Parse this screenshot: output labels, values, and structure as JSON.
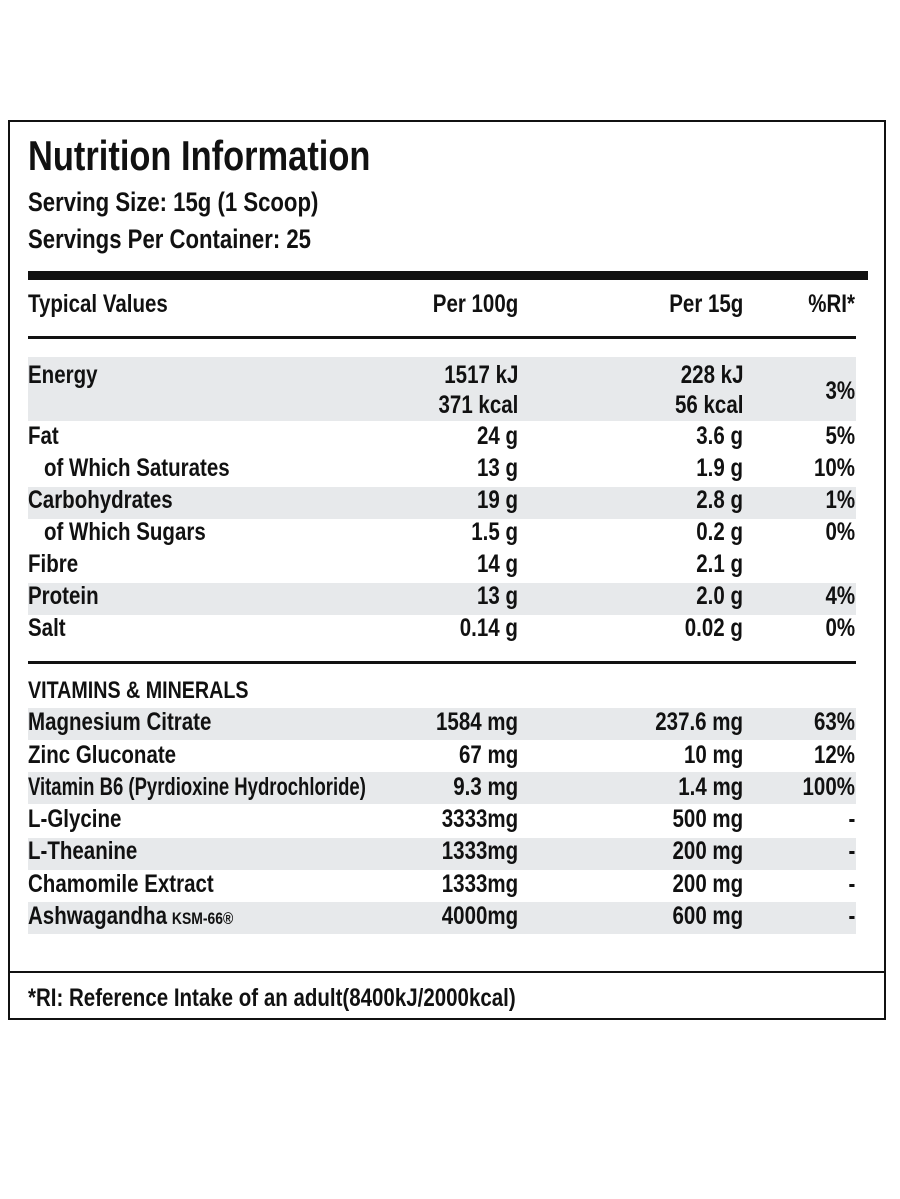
{
  "header": {
    "title": "Nutrition Information",
    "serving_size": "Serving Size: 15g (1 Scoop)",
    "servings_per_container": "Servings Per Container: 25"
  },
  "table": {
    "columns": [
      "Typical Values",
      "Per 100g",
      "Per 15g",
      "%RI*"
    ],
    "rows": [
      {
        "label": "Energy",
        "per_100g": [
          "1517 kJ",
          "371 kcal"
        ],
        "per_15g": [
          "228 kJ",
          "56 kcal"
        ],
        "ri": "3%"
      },
      {
        "label": "Fat",
        "per_100g": "24 g",
        "per_15g": "3.6 g",
        "ri": "5%"
      },
      {
        "label": "of Which Saturates",
        "per_100g": "13 g",
        "per_15g": "1.9 g",
        "ri": "10%"
      },
      {
        "label": "Carbohydrates",
        "per_100g": "19 g",
        "per_15g": "2.8 g",
        "ri": "1%"
      },
      {
        "label": "of Which Sugars",
        "per_100g": "1.5 g",
        "per_15g": "0.2 g",
        "ri": "0%"
      },
      {
        "label": "Fibre",
        "per_100g": "14 g",
        "per_15g": "2.1 g",
        "ri": null
      },
      {
        "label": "Protein",
        "per_100g": "13 g",
        "per_15g": "2.0 g",
        "ri": "4%"
      },
      {
        "label": "Salt",
        "per_100g": "0.14 g",
        "per_15g": "0.02 g",
        "ri": "0%"
      }
    ]
  },
  "vitamins": {
    "title": "VITAMINS & MINERALS",
    "rows": [
      {
        "label": "Magnesium Citrate",
        "per_100g": "1584 mg",
        "per_15g": "237.6 mg",
        "ri": "63%"
      },
      {
        "label": "Zinc Gluconate",
        "per_100g": "67 mg",
        "per_15g": "10 mg",
        "ri": "12%"
      },
      {
        "label": "Vitamin B6 (Pyrdioxine Hydrochloride)",
        "per_100g": "9.3 mg",
        "per_15g": "1.4 mg",
        "ri": "100%"
      },
      {
        "label": "L-Glycine",
        "per_100g": "3333mg",
        "per_15g": "500 mg",
        "ri": "-"
      },
      {
        "label": "L-Theanine",
        "per_100g": "1333mg",
        "per_15g": "200 mg",
        "ri": "-"
      },
      {
        "label": "Chamomile Extract",
        "per_100g": "1333mg",
        "per_15g": "200 mg",
        "ri": "-"
      },
      {
        "label": "Ashwagandha",
        "suffix": "KSM-66®",
        "per_100g": "4000mg",
        "per_15g": "600 mg",
        "ri": "-"
      }
    ]
  },
  "footnote": "*RI: Reference Intake of an adult(8400kJ/2000kcal)"
}
